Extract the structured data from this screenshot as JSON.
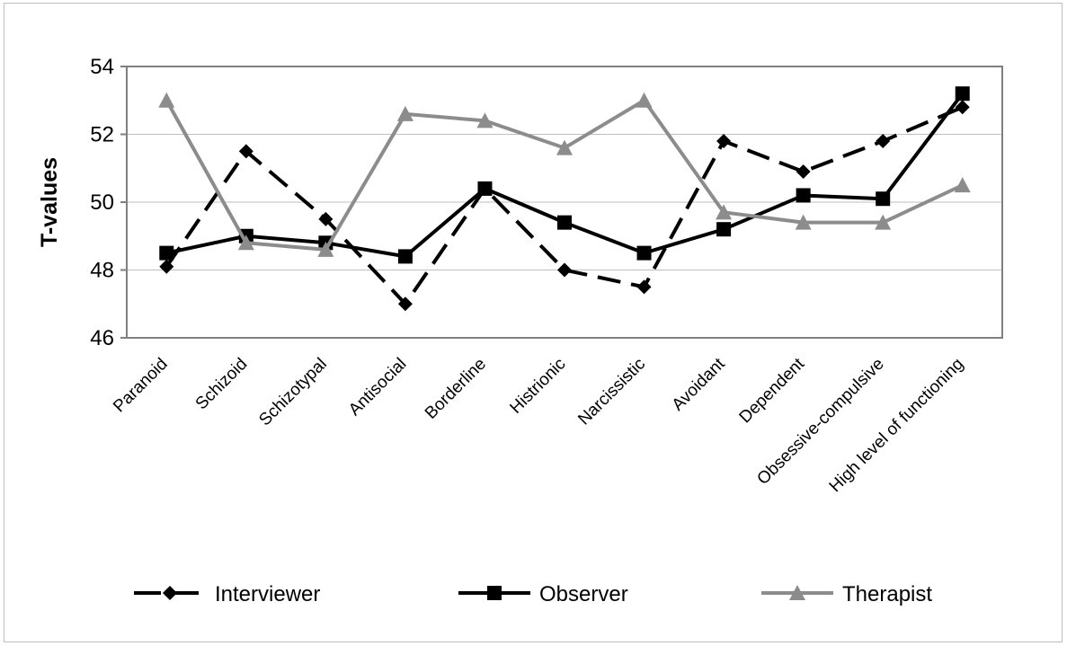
{
  "chart_data": {
    "type": "line",
    "title": "",
    "ylabel": "T-values",
    "xlabel": "",
    "ylim": [
      46,
      54
    ],
    "yticks": [
      46,
      48,
      50,
      52,
      54
    ],
    "grid": true,
    "legend_position": "bottom",
    "categories": [
      "Paranoid",
      "Schizoid",
      "Schizotypal",
      "Antisocial",
      "Borderline",
      "Histrionic",
      "Narcissistic",
      "Avoidant",
      "Dependent",
      "Obsessive-compulsive",
      "High level of functioning"
    ],
    "series": [
      {
        "name": "Interviewer",
        "marker": "diamond",
        "dash": "dashed",
        "color": "#000000",
        "values": [
          48.1,
          51.5,
          49.5,
          47.0,
          50.4,
          48.0,
          47.5,
          51.8,
          50.9,
          51.8,
          52.8
        ]
      },
      {
        "name": "Observer",
        "marker": "square",
        "dash": "solid",
        "color": "#000000",
        "values": [
          48.5,
          49.0,
          48.8,
          48.4,
          50.4,
          49.4,
          48.5,
          49.2,
          50.2,
          50.1,
          53.2
        ]
      },
      {
        "name": "Therapist",
        "marker": "triangle",
        "dash": "solid",
        "color": "#8c8c8c",
        "values": [
          53.0,
          48.8,
          48.6,
          52.6,
          52.4,
          51.6,
          53.0,
          49.7,
          49.4,
          49.4,
          50.5
        ]
      }
    ]
  }
}
